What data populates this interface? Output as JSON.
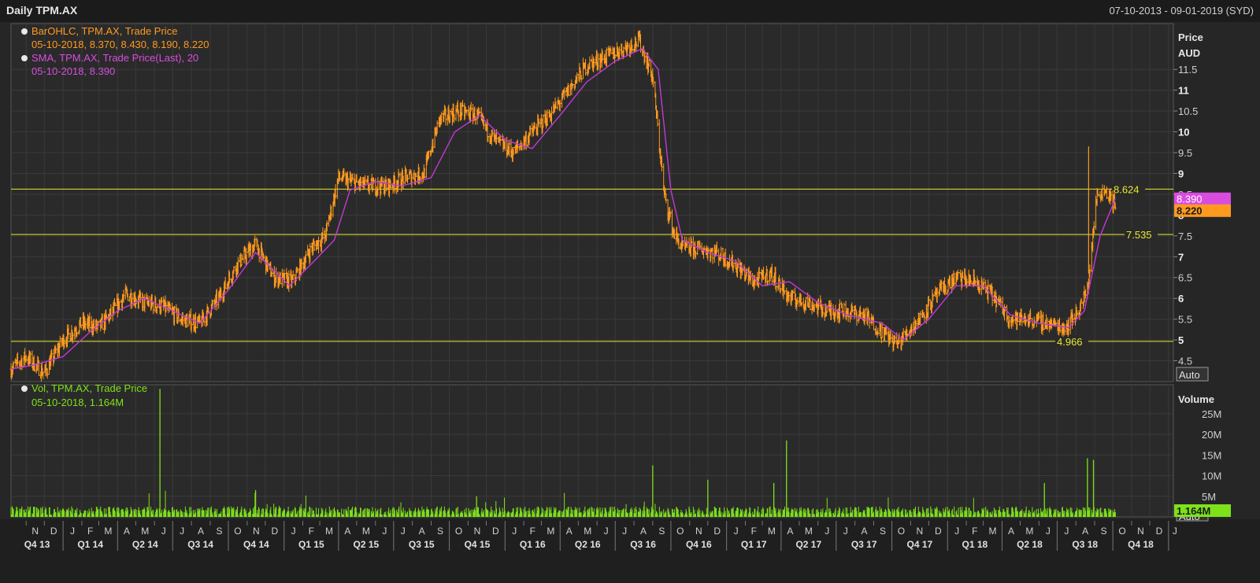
{
  "window": {
    "title": "Daily TPM.AX",
    "date_range": "07-10-2013 - 09-01-2019 (SYD)"
  },
  "price_panel": {
    "axis_title_1": "Price",
    "axis_title_2": "AUD",
    "auto_label": "Auto",
    "legend": [
      {
        "icon": "info-dot-icon",
        "label": "BarOHLC, TPM.AX, Trade Price",
        "value": "05-10-2018, 8.370, 8.430, 8.190, 8.220",
        "color": "#ff9a1f"
      },
      {
        "icon": "info-dot-icon",
        "label": "SMA, TPM.AX, Trade Price(Last),  20",
        "value": "05-10-2018, 8.390",
        "color": "#d94ce0"
      }
    ],
    "last_sma_badge": "8.390",
    "last_price_badge": "8.220"
  },
  "volume_panel": {
    "axis_title": "Volume",
    "auto_label": "Auto",
    "legend": {
      "icon": "info-dot-icon",
      "label": "Vol, TPM.AX, Trade Price",
      "value": "05-10-2018, 1.164M",
      "color": "#7ee21a"
    },
    "last_volume_badge": "1.164M"
  },
  "colors": {
    "background": "#262626",
    "grid": "#3a3a3a",
    "price_bars": "#ff9a1f",
    "sma": "#c238d8",
    "volume": "#7ee21a",
    "hlines": "#e8e830"
  },
  "chart_data": [
    {
      "type": "line",
      "title": "Daily TPM.AX",
      "series": [
        {
          "name": "BarOHLC, TPM.AX, Trade Price",
          "x": [
            "2013-10-07",
            "2013-11-01",
            "2013-12-01",
            "2014-01-01",
            "2014-02-01",
            "2014-03-01",
            "2014-03-20",
            "2014-04-15",
            "2014-05-15",
            "2014-06-15",
            "2014-07-15",
            "2014-08-15",
            "2014-09-15",
            "2014-10-15",
            "2014-11-15",
            "2014-12-15",
            "2015-01-15",
            "2015-02-15",
            "2015-03-10",
            "2015-04-01",
            "2015-04-20",
            "2015-05-20",
            "2015-06-20",
            "2015-07-20",
            "2015-08-20",
            "2015-09-15",
            "2015-10-15",
            "2015-11-15",
            "2015-12-15",
            "2016-01-15",
            "2016-02-15",
            "2016-03-15",
            "2016-04-15",
            "2016-05-15",
            "2016-06-15",
            "2016-07-15",
            "2016-08-10",
            "2016-09-01",
            "2016-09-20",
            "2016-10-05",
            "2016-10-20",
            "2016-11-15",
            "2016-12-15",
            "2017-01-15",
            "2017-02-15",
            "2017-03-15",
            "2017-04-15",
            "2017-05-15",
            "2017-06-15",
            "2017-07-15",
            "2017-08-15",
            "2017-09-15",
            "2017-10-10",
            "2017-11-15",
            "2017-12-15",
            "2018-01-15",
            "2018-02-15",
            "2018-03-15",
            "2018-04-15",
            "2018-05-15",
            "2018-06-15",
            "2018-07-15",
            "2018-08-05",
            "2018-08-20",
            "2018-09-05",
            "2018-09-20",
            "2018-10-05"
          ],
          "values": [
            4.3,
            4.6,
            4.2,
            5.0,
            5.4,
            5.3,
            5.6,
            6.1,
            5.9,
            5.8,
            5.5,
            5.4,
            6.0,
            6.8,
            7.3,
            6.5,
            6.4,
            7.2,
            7.5,
            8.9,
            8.8,
            8.7,
            8.7,
            8.9,
            9.0,
            10.3,
            10.5,
            10.4,
            9.8,
            9.5,
            10.0,
            10.4,
            11.0,
            11.6,
            11.8,
            12.0,
            12.2,
            11.3,
            8.5,
            7.6,
            7.2,
            7.2,
            7.1,
            6.8,
            6.4,
            6.6,
            6.0,
            5.9,
            5.7,
            5.7,
            5.6,
            5.2,
            4.9,
            5.5,
            6.1,
            6.5,
            6.4,
            6.1,
            5.5,
            5.5,
            5.4,
            5.3,
            5.7,
            6.2,
            8.5,
            8.6,
            8.22
          ]
        },
        {
          "name": "SMA, TPM.AX, Trade Price(Last),  20",
          "x": [
            "2013-10-07",
            "2013-11-15",
            "2014-01-01",
            "2014-02-15",
            "2014-04-01",
            "2014-05-15",
            "2014-07-01",
            "2014-08-15",
            "2014-10-01",
            "2014-11-15",
            "2015-01-10",
            "2015-02-20",
            "2015-03-25",
            "2015-04-20",
            "2015-06-01",
            "2015-07-15",
            "2015-09-01",
            "2015-10-10",
            "2015-11-20",
            "2016-01-01",
            "2016-02-15",
            "2016-04-01",
            "2016-05-15",
            "2016-07-01",
            "2016-08-15",
            "2016-09-10",
            "2016-10-01",
            "2016-10-20",
            "2016-12-01",
            "2017-01-15",
            "2017-03-01",
            "2017-04-15",
            "2017-06-01",
            "2017-07-20",
            "2017-09-15",
            "2017-10-20",
            "2017-12-01",
            "2018-01-15",
            "2018-03-01",
            "2018-04-15",
            "2018-06-01",
            "2018-07-20",
            "2018-08-15",
            "2018-09-10",
            "2018-10-05"
          ],
          "values": [
            4.3,
            4.4,
            4.6,
            5.2,
            5.7,
            6.0,
            5.7,
            5.4,
            6.2,
            7.1,
            6.3,
            6.9,
            7.4,
            8.6,
            8.8,
            8.7,
            8.9,
            10.0,
            10.4,
            9.8,
            9.6,
            10.4,
            11.2,
            11.7,
            12.0,
            11.5,
            8.6,
            7.4,
            7.1,
            6.9,
            6.3,
            6.4,
            5.9,
            5.6,
            5.4,
            5.0,
            5.5,
            6.3,
            6.3,
            5.6,
            5.4,
            5.3,
            5.7,
            7.5,
            8.39
          ]
        }
      ],
      "horizontal_lines": [
        {
          "value": 8.624,
          "label": "8.624"
        },
        {
          "value": 7.535,
          "label": "7.535"
        },
        {
          "value": 4.966,
          "label": "4.966"
        }
      ],
      "ylim": [
        4.0,
        12.6
      ],
      "y_ticks": [
        "4.5",
        "5",
        "5.5",
        "6",
        "6.5",
        "7",
        "7.5",
        "8",
        "8.5",
        "9",
        "9.5",
        "10",
        "10.5",
        "11",
        "11.5"
      ],
      "ylabel": "Price AUD",
      "grid": true
    },
    {
      "type": "bar",
      "series": [
        {
          "name": "Vol, TPM.AX, Trade Price",
          "spikes": [
            {
              "x": "2014-06-10",
              "value": 31000000
            },
            {
              "x": "2016-09-01",
              "value": 12500000
            },
            {
              "x": "2017-04-10",
              "value": 18500000
            },
            {
              "x": "2017-03-20",
              "value": 8200000
            },
            {
              "x": "2016-12-01",
              "value": 9000000
            },
            {
              "x": "2018-08-20",
              "value": 14200000
            },
            {
              "x": "2018-08-30",
              "value": 13800000
            },
            {
              "x": "2018-06-10",
              "value": 8200000
            },
            {
              "x": "2015-11-15",
              "value": 5000000
            },
            {
              "x": "2014-11-15",
              "value": 6500000
            },
            {
              "x": "2018-10-05",
              "value": 1164000
            }
          ],
          "typical_value": 1500000
        }
      ],
      "ylim": [
        0,
        32000000
      ],
      "y_ticks": [
        "5M",
        "10M",
        "15M",
        "20M",
        "25M"
      ],
      "ylabel": "Volume"
    }
  ],
  "x_axis": {
    "months": [
      "N",
      "D",
      "J",
      "F",
      "M",
      "A",
      "M",
      "J",
      "J",
      "A",
      "S",
      "O",
      "N",
      "D",
      "J",
      "F",
      "M",
      "A",
      "M",
      "J",
      "J",
      "A",
      "S",
      "O",
      "N",
      "D",
      "J",
      "F",
      "M",
      "A",
      "M",
      "J",
      "J",
      "A",
      "S",
      "O",
      "N",
      "D",
      "J",
      "F",
      "M",
      "A",
      "M",
      "J",
      "J",
      "A",
      "S",
      "O",
      "N",
      "D",
      "J",
      "F",
      "M",
      "A",
      "M",
      "J",
      "J",
      "A",
      "S",
      "O",
      "N",
      "D",
      "J"
    ],
    "quarters": [
      "Q4 13",
      "Q1 14",
      "Q2 14",
      "Q3 14",
      "Q4 14",
      "Q1 15",
      "Q2 15",
      "Q3 15",
      "Q4 15",
      "Q1 16",
      "Q2 16",
      "Q3 16",
      "Q4 16",
      "Q1 17",
      "Q2 17",
      "Q3 17",
      "Q4 17",
      "Q1 18",
      "Q2 18",
      "Q3 18",
      "Q4 18"
    ]
  }
}
